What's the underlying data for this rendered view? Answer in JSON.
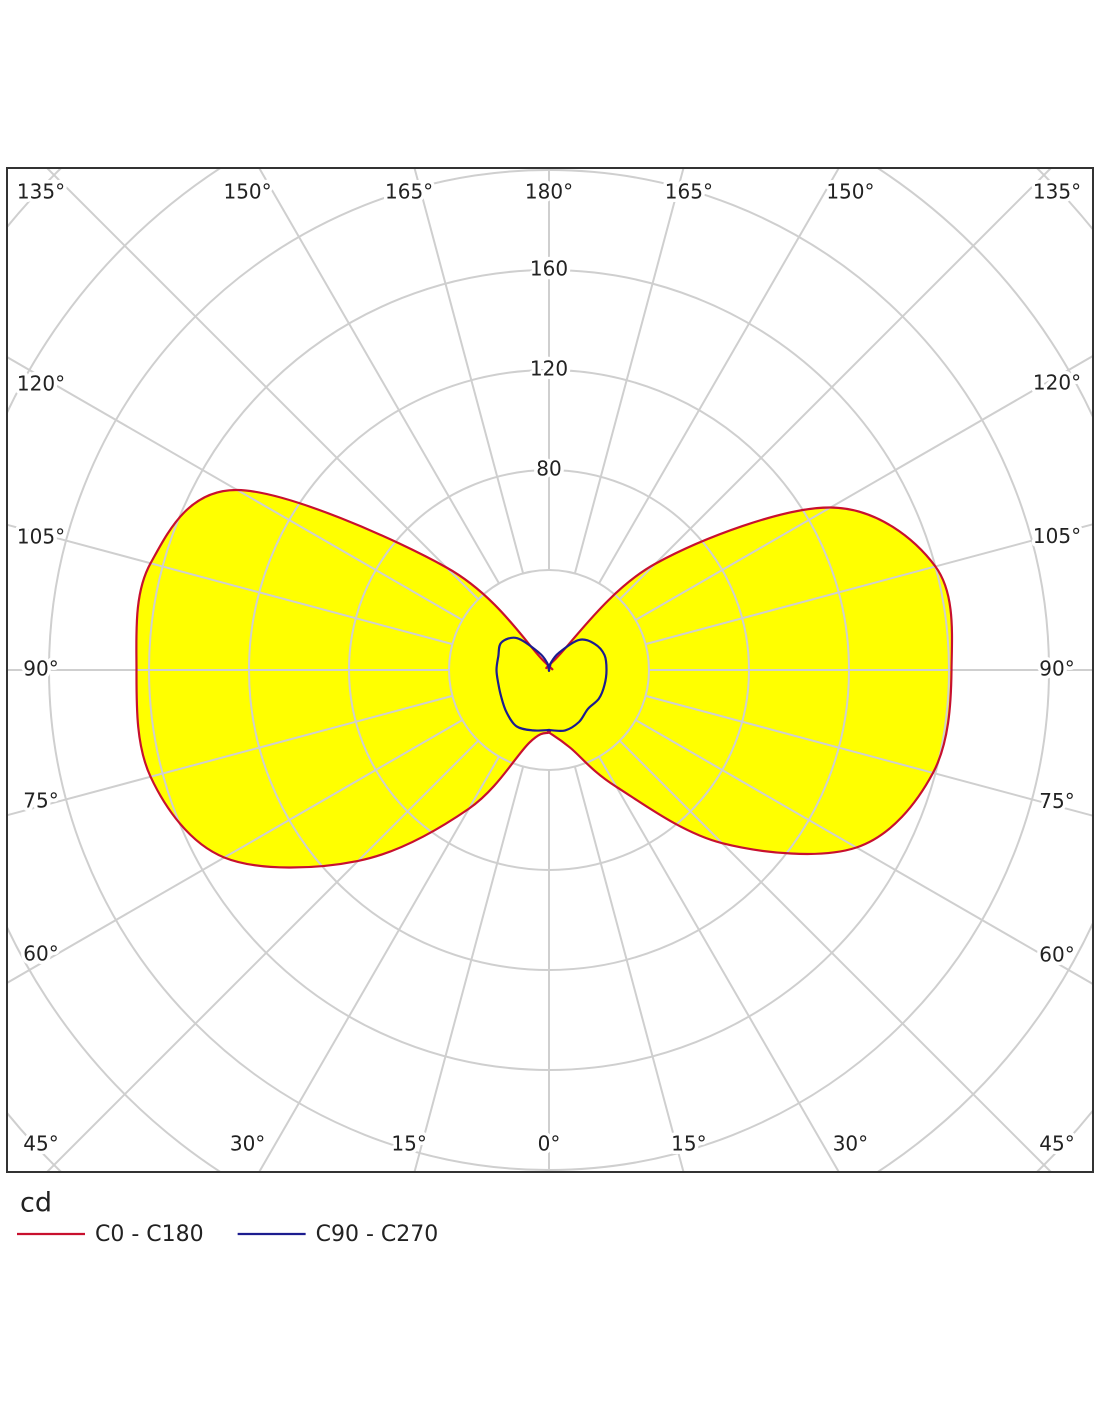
{
  "chart_data": {
    "type": "polar",
    "unit": "cd",
    "x": [
      0,
      15,
      30,
      45,
      60,
      75,
      90,
      105,
      120,
      135,
      150,
      165,
      180
    ],
    "xticks": [
      {
        "value": 0,
        "label": "0°"
      },
      {
        "value": 15,
        "label": "15°"
      },
      {
        "value": 30,
        "label": "30°"
      },
      {
        "value": 45,
        "label": "45°"
      },
      {
        "value": 60,
        "label": "60°"
      },
      {
        "value": 75,
        "label": "75°"
      },
      {
        "value": 90,
        "label": "90°"
      },
      {
        "value": 105,
        "label": "105°"
      },
      {
        "value": 120,
        "label": "120°"
      },
      {
        "value": 135,
        "label": "135°"
      },
      {
        "value": 150,
        "label": "150°"
      },
      {
        "value": 165,
        "label": "165°"
      },
      {
        "value": 180,
        "label": "180°"
      }
    ],
    "rlim": [
      0,
      200
    ],
    "rticks": [
      80,
      120,
      160
    ],
    "rgrid": [
      40,
      80,
      120,
      160,
      200,
      240,
      280
    ],
    "grid": true,
    "legend": "bottom-left",
    "series": [
      {
        "name": "C0 - C180",
        "color": "#c8102e",
        "fill": "#ffff00",
        "values": [
          25,
          32,
          54,
          98,
          142,
          159,
          161,
          160,
          130,
          60,
          5,
          2,
          0
        ],
        "values_opposite": [
          25,
          30,
          64,
          108,
          150,
          165,
          165,
          165,
          144,
          58,
          4,
          2,
          0
        ]
      },
      {
        "name": "C90 - C270",
        "color": "#1c1c8f",
        "values": [
          24,
          25,
          24,
          22,
          23,
          23,
          23,
          23,
          21,
          17,
          8,
          3,
          0
        ],
        "values_opposite": [
          24,
          25,
          26,
          24,
          22,
          21,
          21,
          21,
          22,
          18,
          8,
          3,
          0
        ]
      }
    ]
  }
}
